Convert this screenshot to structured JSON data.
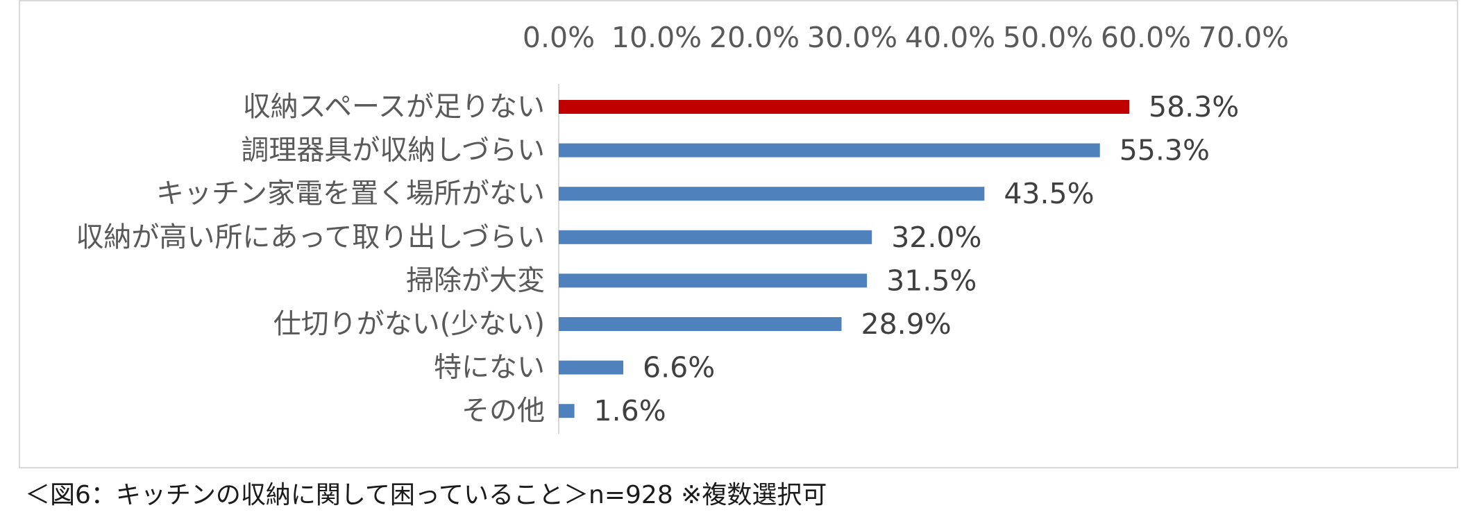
{
  "chart_data": {
    "type": "bar",
    "orientation": "horizontal",
    "categories": [
      "収納スペースが足りない",
      "調理器具が収納しづらい",
      "キッチン家電を置く場所がない",
      "収納が高い所にあって取り出しづらい",
      "掃除が大変",
      "仕切りがない(少ない)",
      "特にない",
      "その他"
    ],
    "values": [
      58.3,
      55.3,
      43.5,
      32.0,
      31.5,
      28.9,
      6.6,
      1.6
    ],
    "data_labels": [
      "58.3%",
      "55.3%",
      "43.5%",
      "32.0%",
      "31.5%",
      "28.9%",
      "6.6%",
      "1.6%"
    ],
    "x_ticks": [
      "0.0%",
      "10.0%",
      "20.0%",
      "30.0%",
      "40.0%",
      "50.0%",
      "60.0%",
      "70.0%"
    ],
    "xlim": [
      0,
      70
    ],
    "x_axis_position": "top",
    "grid": false,
    "legend": "none",
    "colors": {
      "highlight": "#C00000",
      "default": "#4F81BD"
    },
    "highlight_index": 0
  },
  "caption": "＜図6：キッチンの収納に関して困っていること＞n=928 ※複数選択可"
}
